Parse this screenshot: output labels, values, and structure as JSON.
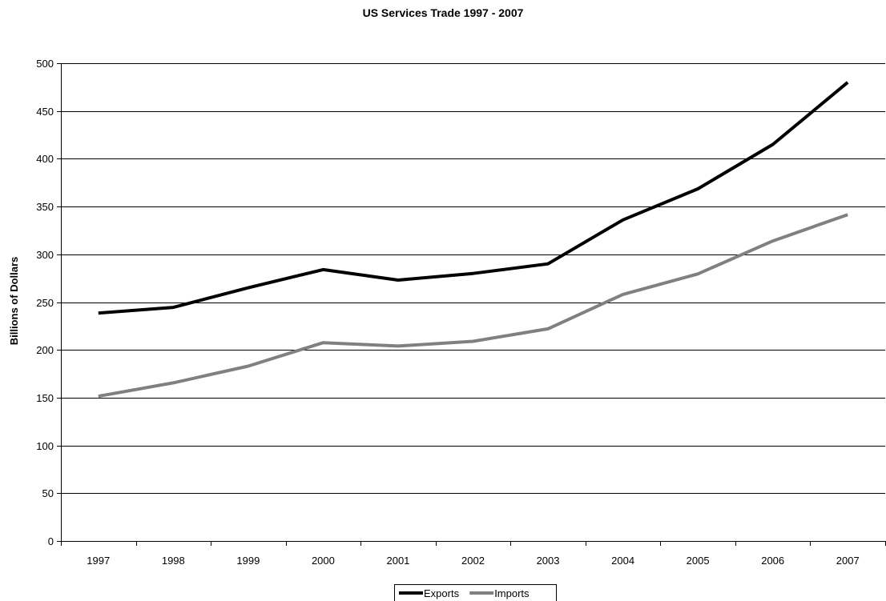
{
  "chart_data": {
    "type": "line",
    "title": "US Services Trade 1997 - 2007",
    "ylabel": "Billions of Dollars",
    "xlabel": "",
    "categories": [
      "1997",
      "1998",
      "1999",
      "2000",
      "2001",
      "2002",
      "2003",
      "2004",
      "2005",
      "2006",
      "2007"
    ],
    "ylim": [
      0,
      500
    ],
    "yticks": [
      0,
      50,
      100,
      150,
      200,
      250,
      300,
      350,
      400,
      450,
      500
    ],
    "grid": "horizontal",
    "legend_position": "bottom",
    "series": [
      {
        "name": "Exports",
        "color": "#000000",
        "values": [
          238.5,
          244.5,
          265,
          284,
          273,
          280,
          290,
          336,
          368.5,
          415,
          480
        ]
      },
      {
        "name": "Imports",
        "color": "#808080",
        "values": [
          151.5,
          165.5,
          183,
          207.5,
          204,
          209,
          222,
          258,
          279.5,
          314,
          341.5
        ]
      }
    ]
  }
}
